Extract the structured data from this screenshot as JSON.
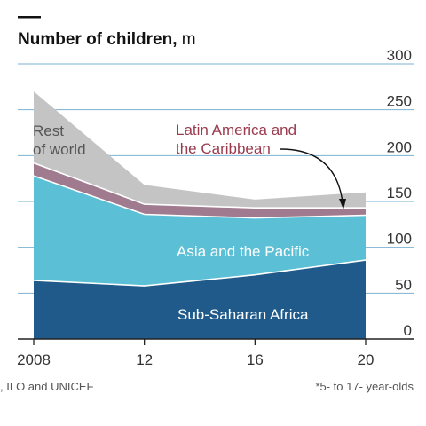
{
  "chart_data": {
    "type": "area",
    "stacked": true,
    "title": "Number of children",
    "unit": "m",
    "x": [
      2008,
      2012,
      2016,
      2020
    ],
    "x_tick_labels": [
      "2008",
      "12",
      "16",
      "20"
    ],
    "y_ticks": [
      0,
      50,
      100,
      150,
      200,
      250,
      300
    ],
    "ylim": [
      0,
      300
    ],
    "grid": true,
    "y_axis_side": "right",
    "series": [
      {
        "name": "Sub-Saharan Africa",
        "values": [
          64,
          58,
          70,
          86
        ],
        "color": "#1f5a8a"
      },
      {
        "name": "Asia and the Pacific",
        "values": [
          114,
          78,
          62,
          49
        ],
        "color": "#5bbfd6"
      },
      {
        "name": "Latin America and the Caribbean",
        "values": [
          14,
          11,
          11,
          8
        ],
        "color": "#a07a8e"
      },
      {
        "name": "Rest of world",
        "values": [
          78,
          21,
          9,
          17
        ],
        "color": "#c4c4c4"
      }
    ],
    "labels": {
      "africa": "Sub-Saharan Africa",
      "asia": "Asia and the Pacific",
      "latam_line1": "Latin America and",
      "latam_line2": "the Caribbean",
      "rest_line1": "Rest",
      "rest_line2": "of world"
    },
    "source": ", ILO and UNICEF",
    "footnote": "*5- to 17- year-olds",
    "colors": {
      "latam_label": "#9b3a4d",
      "asia_label": "#ffffff",
      "africa_label": "#ffffff",
      "rest_label": "#555555",
      "grid": "#7ab3d3",
      "axis": "#222222"
    }
  }
}
